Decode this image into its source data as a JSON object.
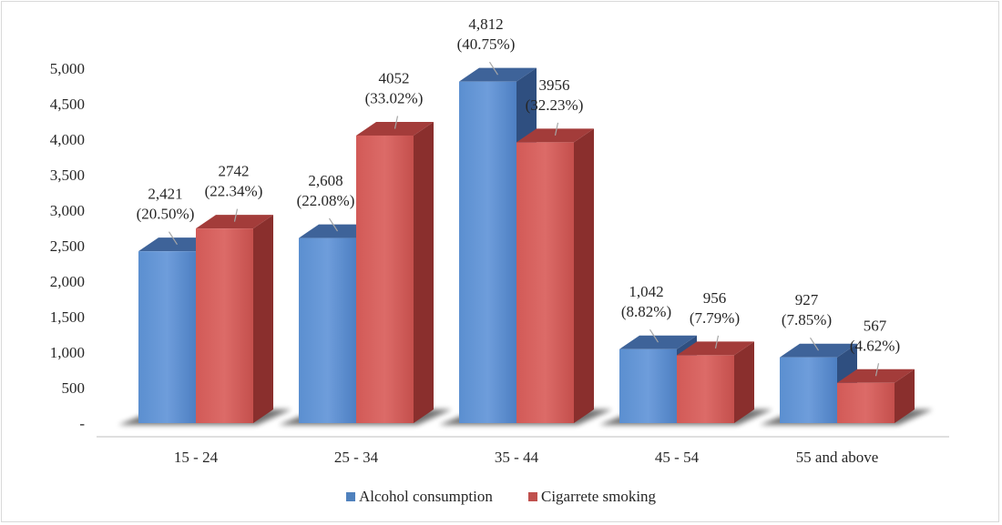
{
  "chart_data": {
    "type": "bar",
    "categories": [
      "15 - 24",
      "25 - 34",
      "35 - 44",
      "45 - 54",
      "55 and above"
    ],
    "series": [
      {
        "name": "Alcohol consumption",
        "color": "#4f81bd",
        "values": [
          2421,
          2608,
          4812,
          1042,
          927
        ],
        "labels": [
          [
            "2,421",
            "(20.50%)"
          ],
          [
            "2,608",
            "(22.08%)"
          ],
          [
            "4,812",
            "(40.75%)"
          ],
          [
            "1,042",
            "(8.82%)"
          ],
          [
            "927",
            "(7.85%)"
          ]
        ]
      },
      {
        "name": "Cigarrete smoking",
        "color": "#c0504d",
        "values": [
          2742,
          4052,
          3956,
          956,
          567
        ],
        "labels": [
          [
            "2742",
            "(22.34%)"
          ],
          [
            "4052",
            "(33.02%)"
          ],
          [
            "3956",
            "(32.23%)"
          ],
          [
            "956",
            "(7.79%)"
          ],
          [
            "567",
            "(4.62%)"
          ]
        ]
      }
    ],
    "ylim": [
      0,
      5000
    ],
    "yticks": [
      0,
      500,
      1000,
      1500,
      2000,
      2500,
      3000,
      3500,
      4000,
      4500,
      5000
    ],
    "ytick_labels": [
      "-",
      "500",
      "1,000",
      "1,500",
      "2,000",
      "2,500",
      "3,000",
      "3,500",
      "4,000",
      "4,500",
      "5,000"
    ],
    "grid": false,
    "legend": "bottom",
    "style": "3d-bar"
  }
}
